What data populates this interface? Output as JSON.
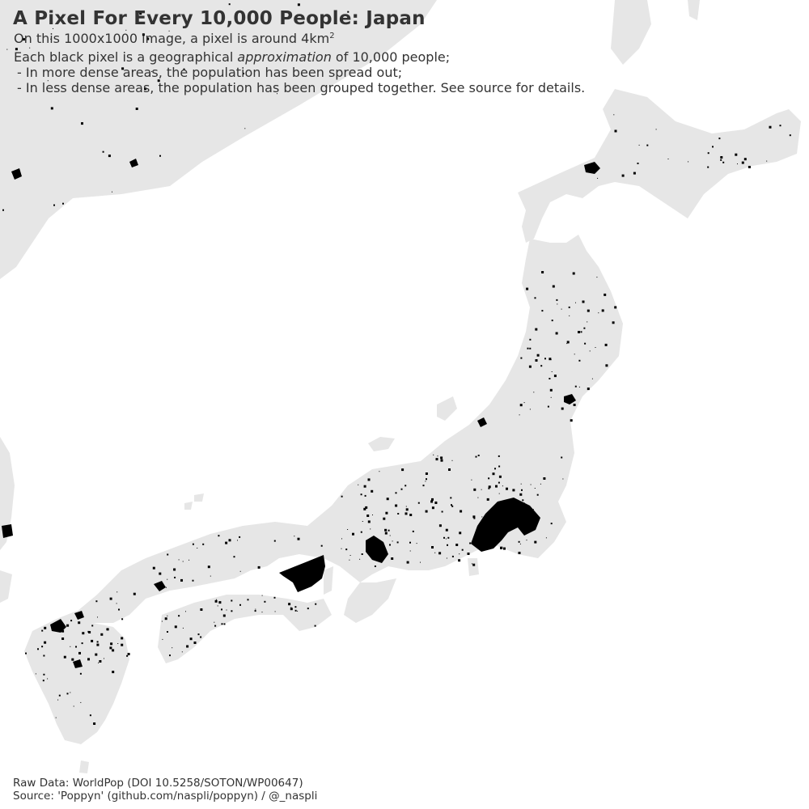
{
  "header": {
    "title": "A Pixel For Every 10,000 People: Japan",
    "subtitle_main": "On this 1000x1000 image, a pixel is around 4km",
    "subtitle_sup": "2",
    "line1_prefix": "Each black pixel is a geographical ",
    "line1_emph": "approximation",
    "line1_suffix": " of 10,000 people;",
    "line2": " - In more dense areas, the population has been spread out;",
    "line3": " - In less dense areas, the population has been grouped together. See source for details."
  },
  "footer": {
    "raw_data": "Raw Data: WorldPop (DOI 10.5258/SOTON/WP00647)",
    "source": "Source: 'Poppyn' (github.com/naspli/poppyn) / @_naspli"
  },
  "map": {
    "land_color": "#e6e6e6",
    "sea_color": "#ffffff",
    "population_color": "#000000"
  }
}
